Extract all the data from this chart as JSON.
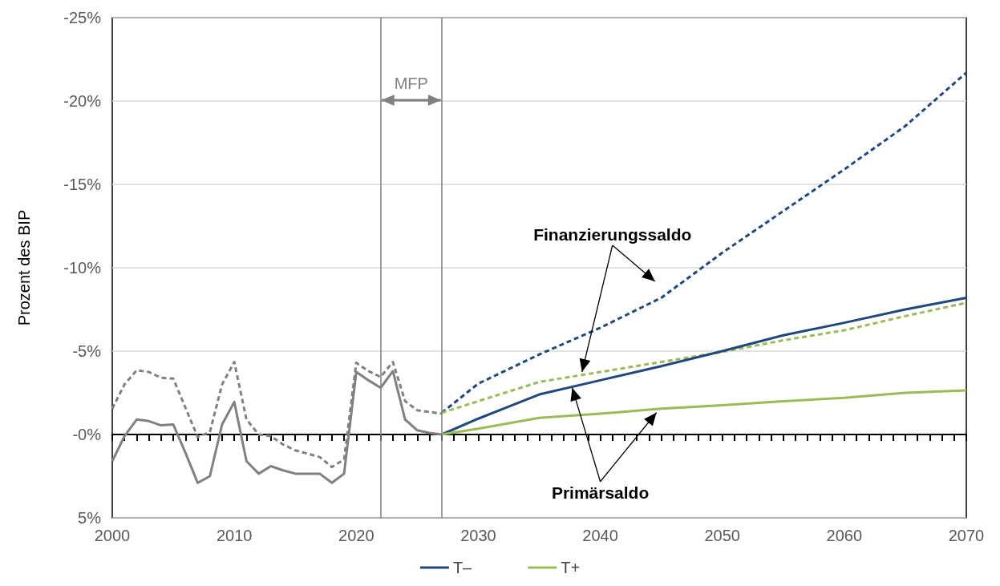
{
  "chart_data": {
    "type": "line",
    "ylabel": "Prozent des BIP",
    "xlim": [
      2000,
      2070
    ],
    "xticks": [
      2000,
      2010,
      2020,
      2030,
      2040,
      2050,
      2060,
      2070
    ],
    "ylim": [
      5,
      -25
    ],
    "yticks": [
      {
        "value": -25,
        "label": "-25%"
      },
      {
        "value": -20,
        "label": "-20%"
      },
      {
        "value": -15,
        "label": "-15%"
      },
      {
        "value": -10,
        "label": "-10%"
      },
      {
        "value": -5,
        "label": "-5%"
      },
      {
        "value": 0,
        "label": "-0%"
      },
      {
        "value": 5,
        "label": "5%"
      }
    ],
    "grid": "y",
    "legend": "bottom",
    "marker": "none",
    "series": [
      {
        "color": "#808080",
        "line_style": "dashed",
        "x": [
          2000,
          2001,
          2002,
          2003,
          2004,
          2005,
          2006,
          2007,
          2008,
          2009,
          2010,
          2011,
          2012,
          2013,
          2014,
          2015,
          2016,
          2017,
          2018,
          2019,
          2020,
          2021,
          2022,
          2023,
          2024,
          2025,
          2026,
          2027
        ],
        "values": [
          -1.55,
          -3.0,
          -3.85,
          -3.75,
          -3.4,
          -3.35,
          -1.6,
          0.15,
          -0.15,
          -3.0,
          -4.35,
          -0.9,
          0,
          0.1,
          0.6,
          0.95,
          1.15,
          1.35,
          1.95,
          1.5,
          -4.3,
          -3.8,
          -3.45,
          -4.35,
          -2.0,
          -1.45,
          -1.35,
          -1.25
        ]
      },
      {
        "color": "#808080",
        "line_style": "solid",
        "x": [
          2000,
          2001,
          2002,
          2003,
          2004,
          2005,
          2006,
          2007,
          2008,
          2009,
          2010,
          2011,
          2012,
          2013,
          2014,
          2015,
          2016,
          2017,
          2018,
          2019,
          2020,
          2021,
          2022,
          2023,
          2024,
          2025,
          2026,
          2027
        ],
        "values": [
          1.6,
          0.1,
          -0.9,
          -0.8,
          -0.55,
          -0.6,
          1.1,
          2.9,
          2.5,
          -0.6,
          -1.95,
          1.6,
          2.35,
          1.9,
          2.15,
          2.35,
          2.35,
          2.35,
          2.9,
          2.35,
          -3.75,
          -3.25,
          -2.8,
          -3.8,
          -0.9,
          -0.25,
          -0.1,
          0
        ]
      },
      {
        "color": "#1f497d",
        "line_style": "dashed",
        "x": [
          2027,
          2030,
          2035,
          2040,
          2045,
          2050,
          2055,
          2060,
          2065,
          2070
        ],
        "values": [
          -1.3,
          -3.05,
          -4.8,
          -6.4,
          -8.2,
          -10.9,
          -13.4,
          -15.9,
          -18.5,
          -21.7
        ]
      },
      {
        "color": "#9bbb59",
        "line_style": "dashed",
        "x": [
          2027,
          2030,
          2035,
          2040,
          2045,
          2050,
          2055,
          2060,
          2065,
          2070
        ],
        "values": [
          -1.3,
          -2.0,
          -3.15,
          -3.75,
          -4.35,
          -4.95,
          -5.65,
          -6.25,
          -7.1,
          -7.9
        ]
      },
      {
        "name": "T–",
        "color": "#1f497d",
        "line_style": "solid",
        "x": [
          2027,
          2030,
          2035,
          2040,
          2045,
          2050,
          2055,
          2060,
          2065,
          2070
        ],
        "values": [
          0,
          -0.95,
          -2.4,
          -3.25,
          -4.1,
          -5.0,
          -5.95,
          -6.7,
          -7.5,
          -8.2
        ]
      },
      {
        "name": "T+",
        "color": "#9bbb59",
        "line_style": "solid",
        "x": [
          2027,
          2030,
          2035,
          2040,
          2045,
          2050,
          2055,
          2060,
          2065,
          2070
        ],
        "values": [
          0,
          -0.35,
          -1.0,
          -1.25,
          -1.55,
          -1.75,
          -2.0,
          -2.2,
          -2.5,
          -2.65
        ]
      }
    ],
    "ref_lines": [
      {
        "axis": "x",
        "value": 2022,
        "color": "#808080"
      },
      {
        "axis": "x",
        "value": 2027,
        "color": "#808080"
      }
    ],
    "annotations": [
      "MFP",
      {
        "text": "Finanzierungssaldo",
        "x": 2038.5,
        "y": -3.75
      },
      {
        "text": "Primärsaldo",
        "x": 2037.7,
        "y": -2.8
      }
    ]
  }
}
